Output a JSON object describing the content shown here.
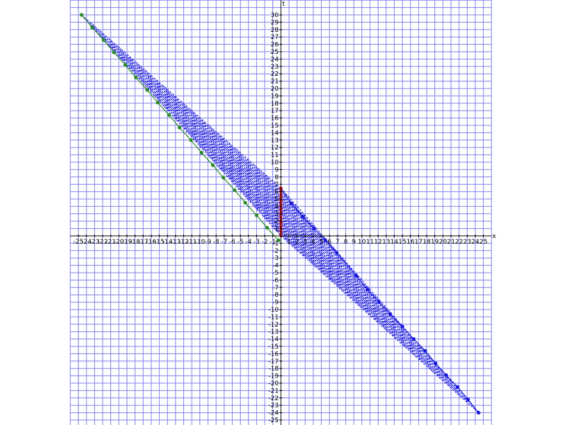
{
  "chart_data": {
    "type": "scatter",
    "title": "",
    "xlabel": "x",
    "ylabel": "t",
    "xlim": [
      -25,
      25
    ],
    "ylim": [
      -25,
      30
    ],
    "xticks": [
      -25,
      -24,
      -23,
      -22,
      -21,
      -20,
      -19,
      -18,
      -17,
      -16,
      -15,
      -14,
      -13,
      -12,
      -11,
      -10,
      -9,
      -8,
      -7,
      -6,
      -5,
      -4,
      -3,
      -2,
      -1,
      1,
      2,
      3,
      4,
      5,
      6,
      7,
      8,
      9,
      10,
      11,
      12,
      13,
      14,
      15,
      16,
      17,
      18,
      19,
      20,
      21,
      22,
      23,
      24,
      25
    ],
    "yticks": [
      -25,
      -24,
      -23,
      -22,
      -21,
      -20,
      -19,
      -18,
      -17,
      -16,
      -15,
      -14,
      -13,
      -12,
      -11,
      -10,
      -9,
      -8,
      -7,
      -6,
      -5,
      -4,
      -3,
      -2,
      -1,
      1,
      2,
      3,
      4,
      5,
      6,
      7,
      8,
      9,
      10,
      11,
      12,
      13,
      14,
      15,
      16,
      17,
      18,
      19,
      20,
      21,
      22,
      23,
      24,
      25,
      26,
      27,
      28,
      29,
      30
    ],
    "grid": true,
    "series": [
      {
        "color": "#2a8a2a",
        "marker": "dot",
        "points": [
          [
            -24.6,
            30
          ],
          [
            -23.3,
            28.3
          ],
          [
            -21.9,
            26.6
          ],
          [
            -20.6,
            24.9
          ],
          [
            -19.2,
            23.2
          ],
          [
            -17.9,
            21.5
          ],
          [
            -16.5,
            19.8
          ],
          [
            -15.2,
            18.1
          ],
          [
            -13.8,
            16.4
          ],
          [
            -12.5,
            14.7
          ],
          [
            -11.1,
            13.0
          ],
          [
            -9.8,
            11.3
          ],
          [
            -8.4,
            9.6
          ],
          [
            -7.1,
            7.9
          ],
          [
            -5.7,
            6.2
          ],
          [
            -4.4,
            4.5
          ],
          [
            -3.0,
            2.8
          ],
          [
            -1.7,
            1.1
          ],
          [
            -0.3,
            -0.6
          ]
        ]
      },
      {
        "color": "#1a1adc",
        "marker": "dot",
        "points": [
          [
            0,
            6.4
          ],
          [
            1.3,
            4.4
          ],
          [
            2.7,
            2.6
          ],
          [
            4.1,
            1.0
          ],
          [
            5.5,
            -0.6
          ],
          [
            6.9,
            -2.3
          ],
          [
            9.3,
            -5.4
          ],
          [
            10.7,
            -7.3
          ],
          [
            12.1,
            -9.0
          ],
          [
            13.5,
            -10.6
          ],
          [
            15.0,
            -12.3
          ],
          [
            16.4,
            -14.0
          ],
          [
            17.8,
            -15.6
          ],
          [
            19.1,
            -17.3
          ],
          [
            20.4,
            -18.9
          ],
          [
            21.8,
            -20.5
          ],
          [
            23.1,
            -22.2
          ],
          [
            24.4,
            -24.0
          ]
        ]
      },
      {
        "color": "#dd1111",
        "marker": "dot",
        "points": [
          [
            0,
            0
          ],
          [
            0,
            0.6
          ],
          [
            0,
            1.2
          ],
          [
            0,
            1.8
          ],
          [
            0,
            2.4
          ],
          [
            0,
            3.0
          ],
          [
            0,
            3.6
          ],
          [
            0,
            4.2
          ],
          [
            0,
            4.8
          ],
          [
            0,
            5.4
          ],
          [
            0,
            6.0
          ],
          [
            0,
            6.5
          ]
        ]
      }
    ],
    "region": {
      "color": "#1a1adc",
      "style": "dashed lines",
      "corners": [
        [
          -24.6,
          30
        ],
        [
          0,
          6.5
        ],
        [
          24.4,
          -24.0
        ],
        [
          0,
          0
        ]
      ]
    }
  }
}
